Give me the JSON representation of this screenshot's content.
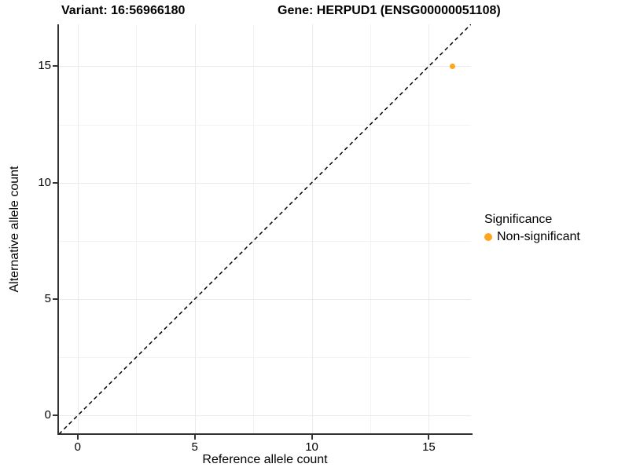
{
  "chart_data": {
    "type": "scatter",
    "titles": {
      "variant": "Variant: 16:56966180",
      "gene": "Gene: HERPUD1 (ENSG00000051108)"
    },
    "xlabel": "Reference allele count",
    "ylabel": "Alternative allele count",
    "xlim": [
      -0.8,
      16.8
    ],
    "ylim": [
      -0.8,
      16.8
    ],
    "x_ticks": [
      0,
      5,
      10,
      15
    ],
    "y_ticks": [
      0,
      5,
      10,
      15
    ],
    "x_minor_ticks": [
      2.5,
      7.5,
      12.5
    ],
    "y_minor_ticks": [
      2.5,
      7.5,
      12.5
    ],
    "grid": "on",
    "points": [
      {
        "x": 16,
        "y": 15,
        "significance": "Non-significant"
      }
    ],
    "identity_line": {
      "style": "dashed",
      "x1": -0.8,
      "y1": -0.8,
      "x2": 16.8,
      "y2": 16.8,
      "color": "#000000"
    },
    "legend": {
      "position": "right",
      "title": "Significance",
      "entries": [
        {
          "label": "Non-significant",
          "color": "#FFA41E"
        }
      ]
    },
    "colors": {
      "major_grid": "#EBEBEB",
      "minor_grid": "#F3F3F3",
      "axis_line": "#333333",
      "text": "#000000"
    }
  }
}
